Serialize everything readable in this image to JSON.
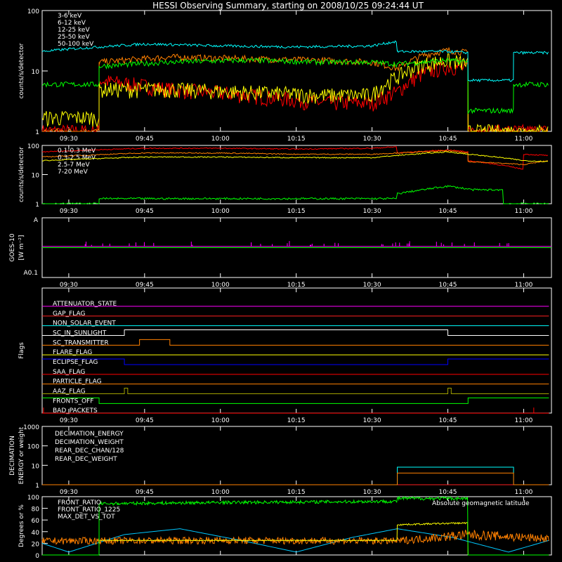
{
  "title": "HESSI Observing Summary, starting on 2008/10/25 09:24:44 UT",
  "time_ticks": [
    "09:30",
    "09:45",
    "10:00",
    "10:15",
    "10:30",
    "10:45",
    "11:00"
  ],
  "chart_data": [
    {
      "id": "hxr",
      "type": "line",
      "ylabel": "counts/s/detector",
      "yscale": "log",
      "ylim": [
        1,
        100
      ],
      "yticks": [
        "1",
        "10",
        "100"
      ],
      "xlim": [
        "09:24:44",
        "11:05:30"
      ],
      "series": [
        {
          "name": "3-6 keV",
          "color": "#ff0000",
          "x": [
            "09:24:44",
            "09:36",
            "09:36",
            "09:50",
            "10:05",
            "10:20",
            "10:30",
            "10:35",
            "10:40",
            "10:45",
            "10:49",
            "10:49",
            "11:00",
            "11:05"
          ],
          "y": [
            1,
            1,
            7,
            5,
            4,
            3,
            3,
            4.5,
            9,
            12,
            11,
            1,
            1,
            1
          ]
        },
        {
          "name": "6-12 keV",
          "color": "#ff8000",
          "x": [
            "09:24:44",
            "09:36",
            "09:36",
            "09:50",
            "10:05",
            "10:20",
            "10:30",
            "10:35",
            "10:40",
            "10:45",
            "10:49",
            "10:49",
            "11:00",
            "11:05"
          ],
          "y": [
            1,
            1,
            14,
            17,
            16,
            15,
            14,
            11,
            18,
            22,
            20,
            1,
            1,
            1
          ]
        },
        {
          "name": "12-25 keV",
          "color": "#ffff00",
          "x": [
            "09:24:44",
            "09:36",
            "09:36",
            "09:50",
            "10:05",
            "10:20",
            "10:30",
            "10:35",
            "10:40",
            "10:45",
            "10:49",
            "10:49",
            "11:00",
            "11:05"
          ],
          "y": [
            1.7,
            1.7,
            5,
            5,
            4.5,
            4,
            4,
            8,
            13,
            15,
            13,
            1,
            1,
            1
          ]
        },
        {
          "name": "25-50 keV",
          "color": "#00ff00",
          "x": [
            "09:24:44",
            "09:36",
            "09:36",
            "09:50",
            "10:05",
            "10:20",
            "10:30",
            "10:35",
            "10:40",
            "10:45",
            "10:49",
            "10:49",
            "10:58",
            "10:58",
            "11:05"
          ],
          "y": [
            6,
            6,
            12,
            14,
            15,
            14,
            14,
            13,
            14,
            15,
            14,
            2.2,
            2.2,
            6,
            6
          ]
        },
        {
          "name": "50-100 keV",
          "color": "#00ffff",
          "x": [
            "09:24:44",
            "09:30",
            "09:45",
            "10:00",
            "10:15",
            "10:30",
            "10:35",
            "10:35",
            "10:45",
            "10:49",
            "10:49",
            "10:58",
            "10:58",
            "11:05"
          ],
          "y": [
            21,
            23,
            28,
            26,
            25,
            26,
            31,
            21,
            21,
            20,
            7,
            7,
            20,
            20
          ]
        }
      ]
    },
    {
      "id": "gamma",
      "type": "line",
      "ylabel": "counts/s/detector",
      "yscale": "log",
      "ylim": [
        1,
        100
      ],
      "yticks": [
        "1",
        "10",
        "100"
      ],
      "series": [
        {
          "name": "0.1-0.3 MeV",
          "color": "#ff0000",
          "x": [
            "09:24:44",
            "09:45",
            "10:00",
            "10:15",
            "10:30",
            "10:35",
            "10:35",
            "10:45",
            "10:49",
            "10:49",
            "11:00",
            "11:00",
            "11:05"
          ],
          "y": [
            60,
            80,
            80,
            75,
            80,
            90,
            55,
            70,
            60,
            30,
            15,
            50,
            45
          ]
        },
        {
          "name": "0.3-2.5 MeV",
          "color": "#ff8000",
          "x": [
            "09:24:44",
            "09:45",
            "10:00",
            "10:15",
            "10:30",
            "10:45",
            "10:49",
            "10:49",
            "11:00",
            "11:05"
          ],
          "y": [
            40,
            55,
            55,
            50,
            50,
            65,
            55,
            28,
            22,
            30
          ]
        },
        {
          "name": "2.5-7 MeV",
          "color": "#ffff00",
          "x": [
            "09:24:44",
            "09:45",
            "10:00",
            "10:15",
            "10:30",
            "10:45",
            "10:49",
            "11:00",
            "11:05"
          ],
          "y": [
            30,
            40,
            40,
            38,
            38,
            60,
            50,
            30,
            28
          ]
        },
        {
          "name": "7-20 MeV",
          "color": "#00ff00",
          "x": [
            "09:24:44",
            "09:36",
            "09:36",
            "10:35",
            "10:35",
            "10:40",
            "10:45",
            "10:50",
            "10:56",
            "10:56",
            "11:05"
          ],
          "y": [
            1,
            1,
            1.5,
            1.5,
            2.2,
            3,
            4,
            3,
            3,
            1,
            1
          ]
        }
      ]
    },
    {
      "id": "goes",
      "type": "line",
      "ylabel": "GOES-10",
      "ylabel2": "[W m⁻²]",
      "yticks": [
        "A",
        "A0.1"
      ],
      "series": [
        {
          "name": "goes_low",
          "color": "#00ff00",
          "y": [
            0.5
          ]
        },
        {
          "name": "goes_high",
          "color": "#ff00ff",
          "y": [
            0.52
          ]
        }
      ]
    },
    {
      "id": "flags",
      "type": "line",
      "ylabel": "Flags",
      "series": [
        {
          "name": "ATTENUATOR_STATE",
          "color": "#ff00ff",
          "segments": [
            [
              "09:24:44",
              "11:05",
              0
            ]
          ]
        },
        {
          "name": "GAP_FLAG",
          "color": "#ff2020",
          "segments": [
            [
              "09:24:44",
              "11:05",
              0
            ]
          ]
        },
        {
          "name": "NON_SOLAR_EVENT",
          "color": "#00ffff",
          "segments": [
            [
              "09:24:44",
              "11:05",
              0
            ]
          ]
        },
        {
          "name": "SC_IN_SUNLIGHT",
          "color": "#ffffff",
          "segments": [
            [
              "09:24:44",
              "09:41",
              0
            ],
            [
              "09:41",
              "10:45",
              1
            ],
            [
              "10:45",
              "11:05",
              0
            ]
          ]
        },
        {
          "name": "SC_TRANSMITTER",
          "color": "#ff8000",
          "segments": [
            [
              "09:24:44",
              "09:44",
              0
            ],
            [
              "09:44",
              "09:50",
              1
            ],
            [
              "09:50",
              "11:05",
              0
            ]
          ]
        },
        {
          "name": "FLARE_FLAG",
          "color": "#ffff00",
          "segments": [
            [
              "09:24:44",
              "11:05",
              0
            ]
          ]
        },
        {
          "name": "ECLIPSE_FLAG",
          "color": "#0000ff",
          "segments": [
            [
              "09:24:44",
              "09:41",
              1
            ],
            [
              "09:41",
              "10:45",
              0
            ],
            [
              "10:45",
              "11:05",
              1
            ]
          ]
        },
        {
          "name": "SAA_FLAG",
          "color": "#ff0000",
          "segments": [
            [
              "09:24:44",
              "11:05",
              0
            ]
          ]
        },
        {
          "name": "PARTICLE_FLAG",
          "color": "#ff8000",
          "segments": [
            [
              "09:24:44",
              "11:05",
              0
            ]
          ]
        },
        {
          "name": "AAZ_FLAG",
          "color": "#a0a000",
          "segments": [
            [
              "09:24:44",
              "09:41",
              0
            ],
            [
              "09:41",
              "09:41:40",
              1
            ],
            [
              "09:41:40",
              "10:45",
              0
            ],
            [
              "10:45",
              "10:45:40",
              1
            ],
            [
              "10:45:40",
              "11:05",
              0
            ]
          ]
        },
        {
          "name": "FRONTS_OFF",
          "color": "#00ff00",
          "segments": [
            [
              "09:24:44",
              "09:36",
              1
            ],
            [
              "09:36",
              "10:49",
              0
            ],
            [
              "10:49",
              "11:05",
              1
            ]
          ]
        },
        {
          "name": "BAD_PACKETS",
          "color": "#ff0000",
          "segments": [
            [
              "09:24:44",
              "11:05",
              0
            ]
          ],
          "spikes": [
            "09:25",
            "11:02"
          ]
        }
      ]
    },
    {
      "id": "decimation",
      "type": "line",
      "ylabel": "DECIMATION",
      "ylabel2": "ENERGY or weight",
      "yscale": "log",
      "ylim": [
        1,
        1000
      ],
      "yticks": [
        "1",
        "10",
        "100",
        "1000"
      ],
      "series": [
        {
          "name": "DECIMATION_ENERGY",
          "color": "#00ff00",
          "x": [
            "09:24:44",
            "11:05"
          ],
          "y": [
            1,
            1
          ]
        },
        {
          "name": "DECIMATION_WEIGHT",
          "color": "#ff2020",
          "x": [
            "09:24:44",
            "11:05"
          ],
          "y": [
            1,
            1
          ]
        },
        {
          "name": "REAR_DEC_CHAN/128",
          "color": "#00ffff",
          "x": [
            "09:24:44",
            "10:35",
            "10:35",
            "10:58",
            "10:58",
            "11:05"
          ],
          "y": [
            1,
            1,
            8,
            8,
            1,
            1
          ]
        },
        {
          "name": "REAR_DEC_WEIGHT",
          "color": "#ff8000",
          "x": [
            "09:24:44",
            "10:35",
            "10:35",
            "10:58",
            "10:58",
            "11:05"
          ],
          "y": [
            1,
            1,
            4,
            4,
            1,
            1
          ]
        }
      ]
    },
    {
      "id": "ratios",
      "type": "line",
      "ylabel": "Degrees or %",
      "ylim": [
        0,
        100
      ],
      "yticks": [
        "0",
        "20",
        "40",
        "60",
        "80",
        "100"
      ],
      "annotation": "Absolute geomagnetic latitude",
      "series": [
        {
          "name": "FRONT_RATIO",
          "color": "#00ff00",
          "x": [
            "09:24:44",
            "09:36",
            "09:36",
            "10:00",
            "10:35",
            "10:35",
            "10:49",
            "10:49",
            "11:05"
          ],
          "y": [
            0,
            0,
            88,
            90,
            92,
            97,
            97,
            0,
            0
          ]
        },
        {
          "name": "FRONT_RATIO_1225",
          "color": "#ffff00",
          "x": [
            "09:24:44",
            "09:36",
            "09:36",
            "10:35",
            "10:35",
            "10:49",
            "10:49",
            "11:05"
          ],
          "y": [
            0,
            0,
            25,
            25,
            52,
            55,
            0,
            0
          ]
        },
        {
          "name": "MAX_DET_VS_TOT",
          "color": "#ff8000",
          "x": [
            "09:24:44",
            "10:00",
            "10:35",
            "10:49",
            "11:05"
          ],
          "y": [
            24,
            25,
            24,
            35,
            28
          ]
        },
        {
          "name": "Absolute geomagnetic latitude",
          "color": "#00c8ff",
          "x": [
            "09:24:44",
            "09:30",
            "09:41",
            "09:52",
            "10:04",
            "10:15",
            "10:26",
            "10:35",
            "10:46",
            "10:57",
            "11:05"
          ],
          "y": [
            20,
            5,
            35,
            45,
            25,
            5,
            30,
            45,
            30,
            5,
            25
          ]
        }
      ]
    }
  ]
}
